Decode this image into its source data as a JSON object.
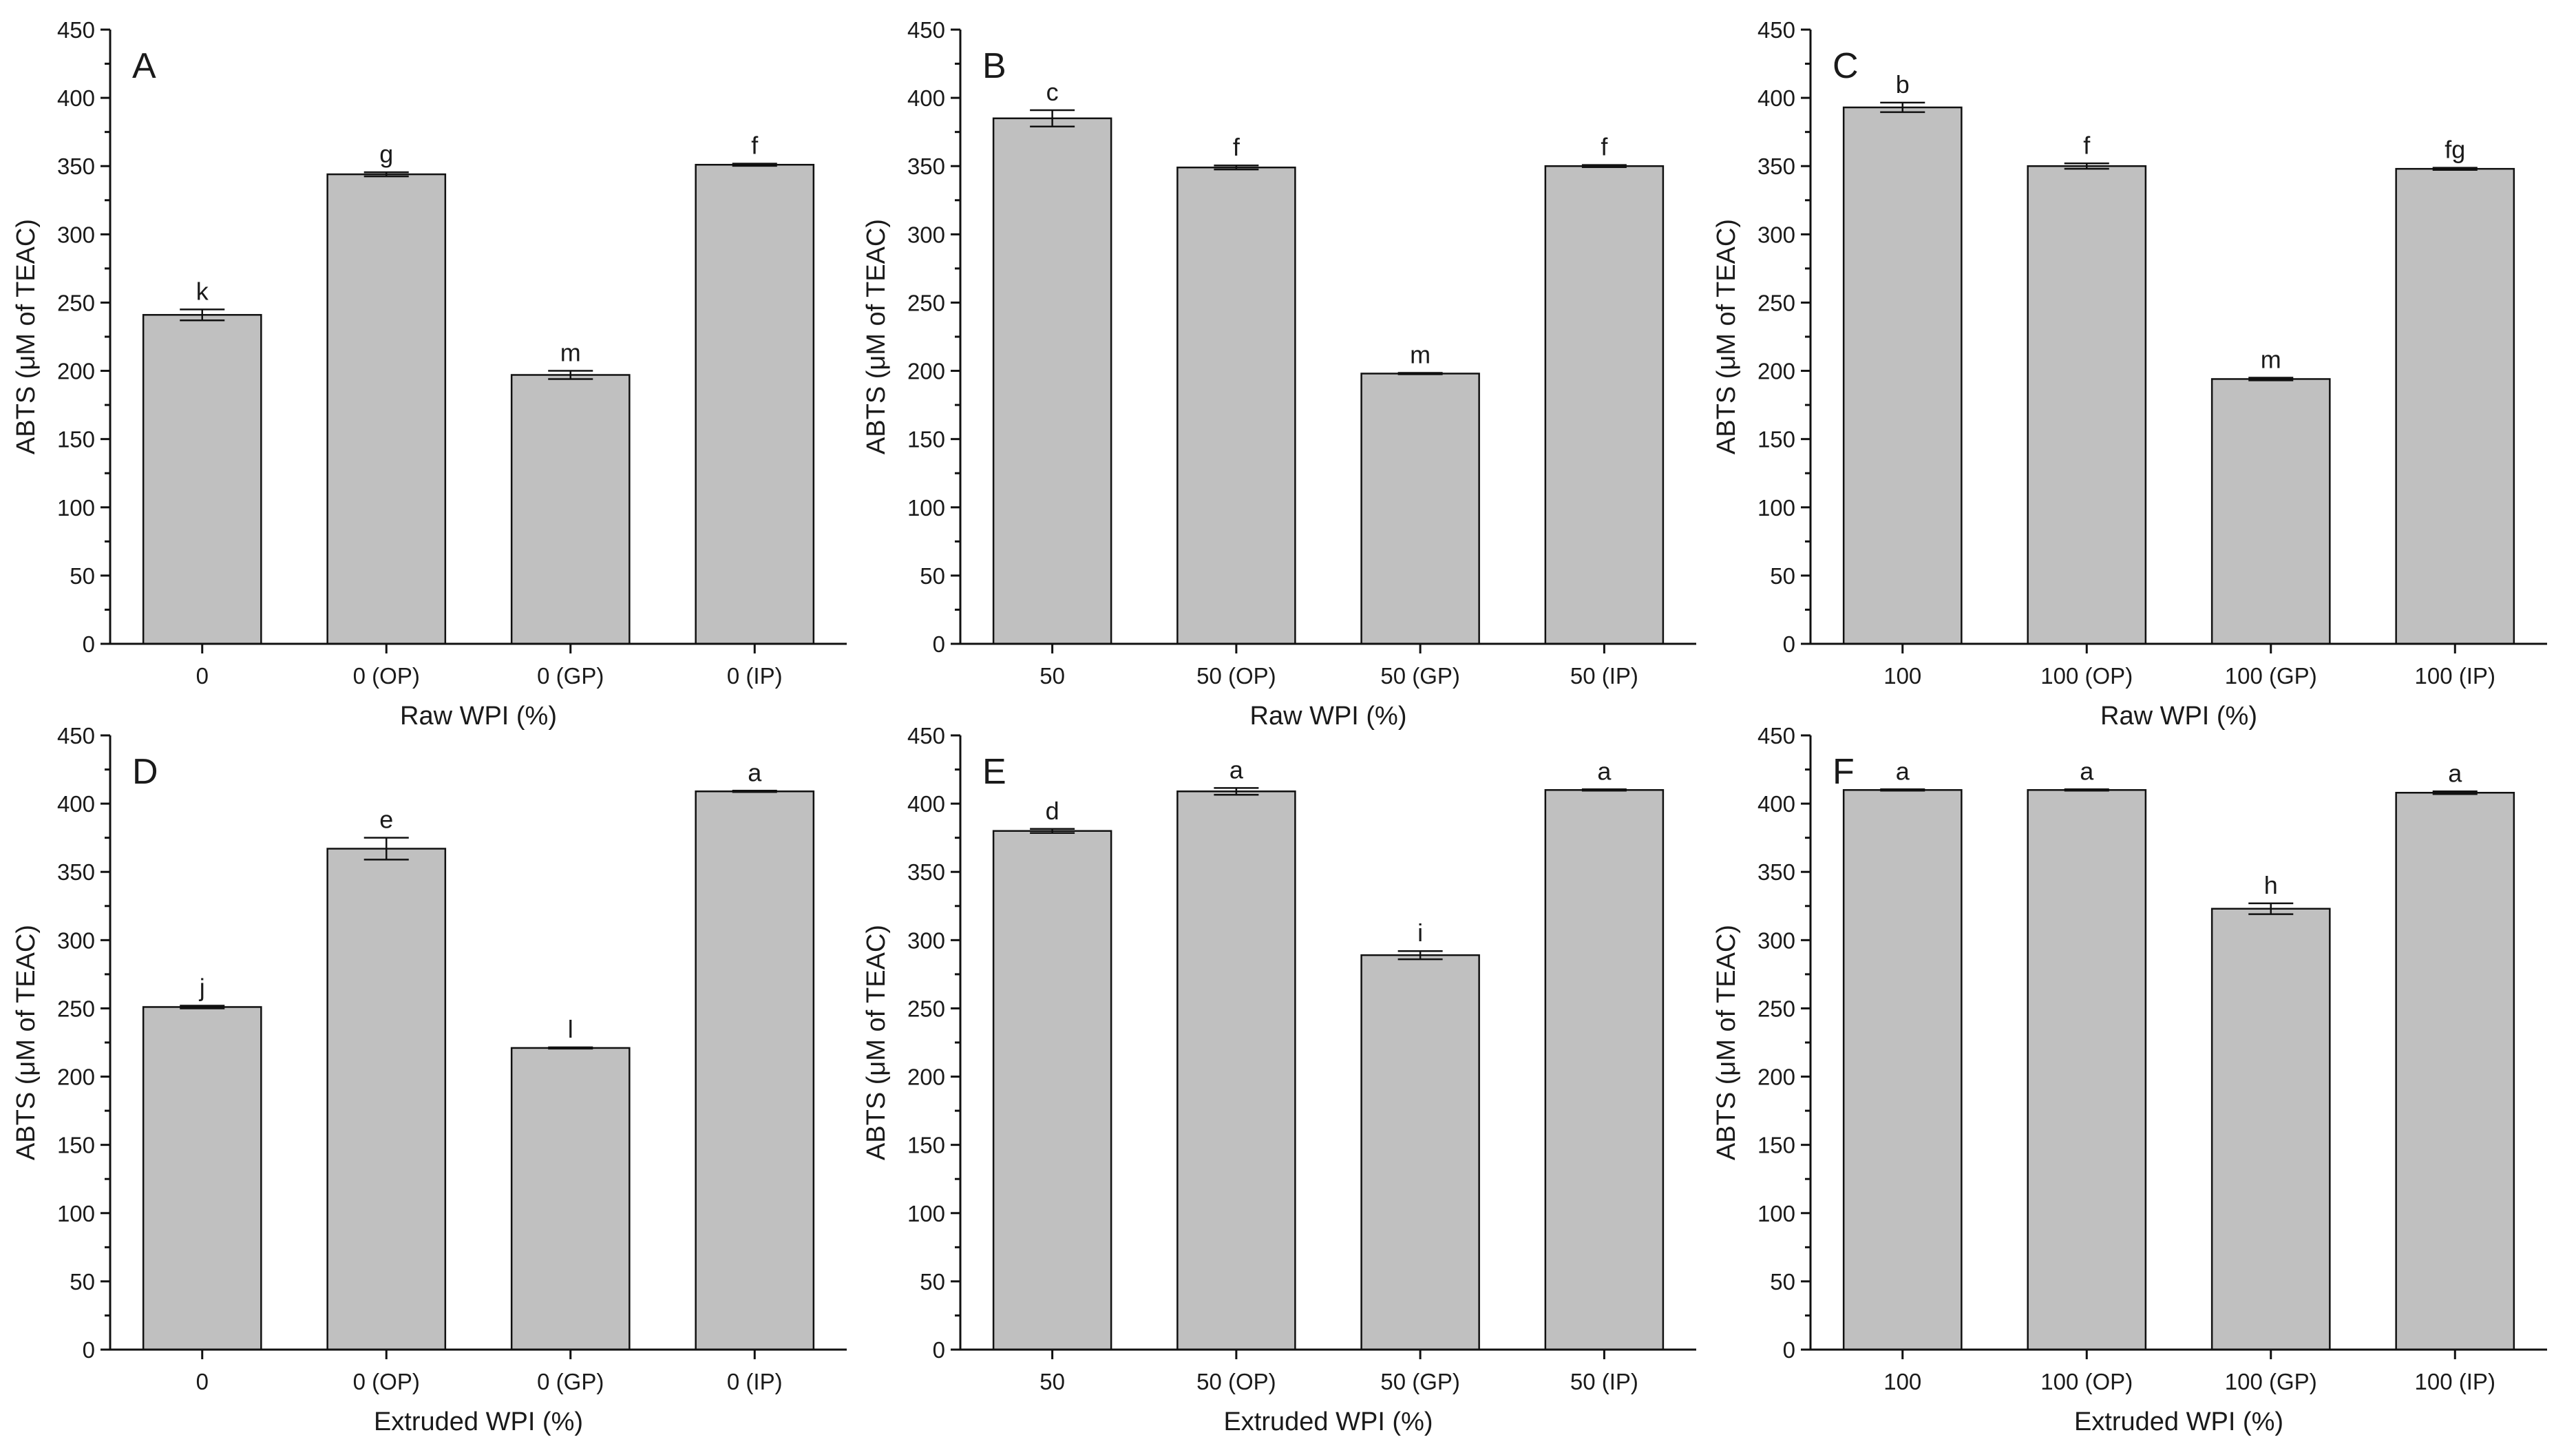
{
  "colors": {
    "bar_fill": "#c0c0c0",
    "bar_stroke": "#111111",
    "background": "#ffffff"
  },
  "chart_data": [
    {
      "type": "bar",
      "panel": "A",
      "categories": [
        "0",
        "0 (OP)",
        "0 (GP)",
        "0 (IP)"
      ],
      "values": [
        241,
        344,
        197,
        351
      ],
      "errors": [
        4,
        1.5,
        3,
        0.8
      ],
      "letters": [
        "k",
        "g",
        "m",
        "f"
      ],
      "xlabel": "Raw WPI (%)",
      "ylabel": "ABTS (μM of TEAC)",
      "ylim": [
        0,
        450
      ],
      "yticks": [
        "0",
        "50",
        "100",
        "150",
        "200",
        "250",
        "300",
        "350",
        "400",
        "450"
      ]
    },
    {
      "type": "bar",
      "panel": "B",
      "categories": [
        "50",
        "50 (OP)",
        "50 (GP)",
        "50 (IP)"
      ],
      "values": [
        385,
        349,
        198,
        350
      ],
      "errors": [
        6,
        1.5,
        0.5,
        0.8
      ],
      "letters": [
        "c",
        "f",
        "m",
        "f"
      ],
      "xlabel": "Raw WPI (%)",
      "ylabel": "ABTS (μM of TEAC)",
      "ylim": [
        0,
        450
      ],
      "yticks": [
        "0",
        "50",
        "100",
        "150",
        "200",
        "250",
        "300",
        "350",
        "400",
        "450"
      ]
    },
    {
      "type": "bar",
      "panel": "C",
      "categories": [
        "100",
        "100 (OP)",
        "100 (GP)",
        "100 (IP)"
      ],
      "values": [
        393,
        350,
        194,
        348
      ],
      "errors": [
        3.5,
        2,
        1,
        0.8
      ],
      "letters": [
        "b",
        "f",
        "m",
        "fg"
      ],
      "xlabel": "Raw WPI (%)",
      "ylabel": "ABTS (μM of TEAC)",
      "ylim": [
        0,
        450
      ],
      "yticks": [
        "0",
        "50",
        "100",
        "150",
        "200",
        "250",
        "300",
        "350",
        "400",
        "450"
      ]
    },
    {
      "type": "bar",
      "panel": "D",
      "categories": [
        "0",
        "0 (OP)",
        "0 (GP)",
        "0 (IP)"
      ],
      "values": [
        251,
        367,
        221,
        409
      ],
      "errors": [
        1,
        8,
        0.5,
        0.5
      ],
      "letters": [
        "j",
        "e",
        "l",
        "a"
      ],
      "xlabel": "Extruded WPI (%)",
      "ylabel": "ABTS (μM of TEAC)",
      "ylim": [
        0,
        450
      ],
      "yticks": [
        "0",
        "50",
        "100",
        "150",
        "200",
        "250",
        "300",
        "350",
        "400",
        "450"
      ]
    },
    {
      "type": "bar",
      "panel": "E",
      "categories": [
        "50",
        "50 (OP)",
        "50 (GP)",
        "50 (IP)"
      ],
      "values": [
        380,
        409,
        289,
        410
      ],
      "errors": [
        1.5,
        2.5,
        3,
        0.5
      ],
      "letters": [
        "d",
        "a",
        "i",
        "a"
      ],
      "xlabel": "Extruded WPI (%)",
      "ylabel": "ABTS (μM of TEAC)",
      "ylim": [
        0,
        450
      ],
      "yticks": [
        "0",
        "50",
        "100",
        "150",
        "200",
        "250",
        "300",
        "350",
        "400",
        "450"
      ]
    },
    {
      "type": "bar",
      "panel": "F",
      "categories": [
        "100",
        "100 (OP)",
        "100 (GP)",
        "100 (IP)"
      ],
      "values": [
        410,
        410,
        323,
        408
      ],
      "errors": [
        0.5,
        0.5,
        4,
        1
      ],
      "letters": [
        "a",
        "a",
        "h",
        "a"
      ],
      "xlabel": "Extruded WPI (%)",
      "ylabel": "ABTS (μM of TEAC)",
      "ylim": [
        0,
        450
      ],
      "yticks": [
        "0",
        "50",
        "100",
        "150",
        "200",
        "250",
        "300",
        "350",
        "400",
        "450"
      ]
    }
  ]
}
